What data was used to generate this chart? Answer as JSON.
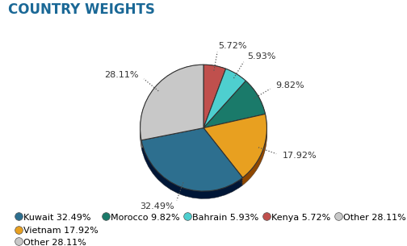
{
  "title": "COUNTRY WEIGHTS",
  "slices": [
    {
      "label": "Kuwait",
      "value": 32.49,
      "color": "#2d6f8f"
    },
    {
      "label": "Vietnam",
      "value": 17.92,
      "color": "#e8a020"
    },
    {
      "label": "Morocco",
      "value": 9.82,
      "color": "#1a7a6a"
    },
    {
      "label": "Bahrain",
      "value": 5.93,
      "color": "#4ecfcf"
    },
    {
      "label": "Kenya",
      "value": 5.72,
      "color": "#c0504d"
    },
    {
      "label": "Other",
      "value": 28.11,
      "color": "#c8c8c8"
    }
  ],
  "edge_color": "#333333",
  "background_color": "#ffffff",
  "title_color": "#1a6896",
  "title_fontsize": 12,
  "legend_fontsize": 8,
  "annot_fontsize": 8,
  "startangle": 90,
  "shadow_depth": 0.08,
  "shadow_darken": 0.35
}
